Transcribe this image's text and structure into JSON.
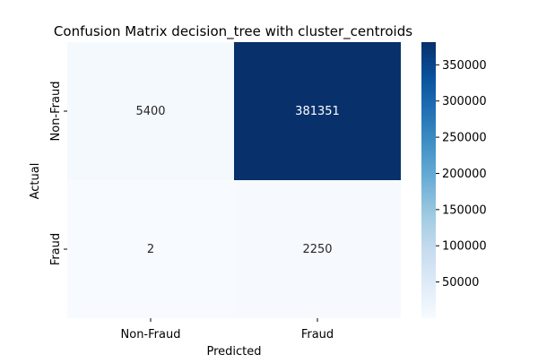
{
  "chart_data": {
    "type": "heatmap",
    "title": "Confusion Matrix decision_tree with cluster_centroids",
    "xlabel": "Predicted",
    "ylabel": "Actual",
    "x_categories": [
      "Non-Fraud",
      "Fraud"
    ],
    "y_categories": [
      "Non-Fraud",
      "Fraud"
    ],
    "matrix": [
      [
        5400,
        381351
      ],
      [
        2,
        2250
      ]
    ],
    "colorbar": {
      "colormap": "Blues",
      "min": 2,
      "max": 381351,
      "ticks": [
        50000,
        100000,
        150000,
        200000,
        250000,
        300000,
        350000
      ]
    },
    "colors": {
      "low": "#f7fbff",
      "high": "#08306b"
    }
  }
}
